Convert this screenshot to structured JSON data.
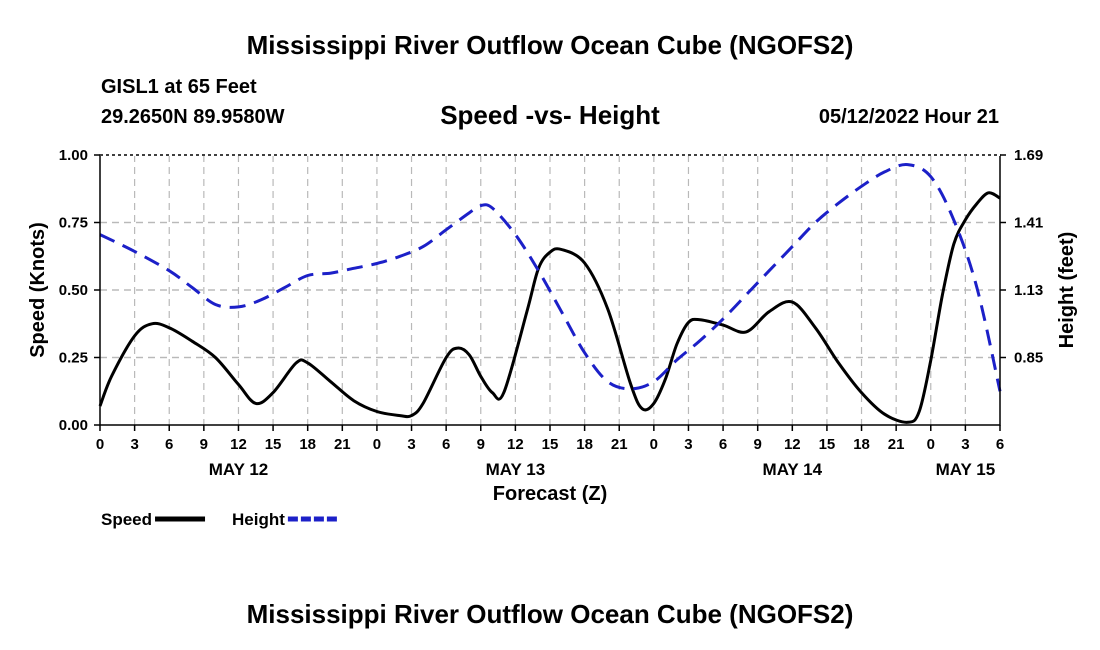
{
  "header": {
    "title": "Mississippi River Outflow Ocean Cube (NGOFS2)",
    "station": "GISL1 at 65 Feet",
    "coordinates": "29.2650N  89.9580W",
    "subtitle": "Speed -vs- Height",
    "datetime": "05/12/2022 Hour 21"
  },
  "footer": {
    "title": "Mississippi River Outflow Ocean Cube (NGOFS2)"
  },
  "chart_data": {
    "type": "line",
    "title": "Speed -vs- Height",
    "xlabel": "Forecast (Z)",
    "ylabel": "Speed (Knots)",
    "y2label": "Height (feet)",
    "x_range_hours": [
      0,
      78
    ],
    "xlim_hours_from_may12_00z": [
      0,
      78
    ],
    "x_ticks": [
      "0",
      "3",
      "6",
      "9",
      "12",
      "15",
      "18",
      "21",
      "0",
      "3",
      "6",
      "9",
      "12",
      "15",
      "18",
      "21",
      "0",
      "3",
      "6",
      "9",
      "12",
      "15",
      "18",
      "21",
      "0",
      "3",
      "6"
    ],
    "day_labels": [
      {
        "label": "MAY 12",
        "hour": 12
      },
      {
        "label": "MAY 13",
        "hour": 36
      },
      {
        "label": "MAY 14",
        "hour": 60
      },
      {
        "label": "MAY 15",
        "hour": 75
      }
    ],
    "ylim": [
      0,
      1.0
    ],
    "y_ticks": [
      "0.00",
      "0.25",
      "0.50",
      "0.75",
      "1.00"
    ],
    "y_tick_values": [
      0,
      0.25,
      0.5,
      0.75,
      1.0
    ],
    "y2lim": [
      0.57,
      1.69
    ],
    "y2_ticks": [
      "0.85",
      "1.13",
      "1.41",
      "1.69"
    ],
    "y2_tick_values": [
      0.85,
      1.13,
      1.41,
      1.69
    ],
    "grid": true,
    "legend_position": "bottom-left",
    "series": [
      {
        "name": "Speed",
        "axis": "left",
        "color": "#000000",
        "dash": "solid",
        "x": [
          0,
          1,
          3,
          4.5,
          6,
          8,
          10,
          12,
          13.5,
          15,
          17,
          18,
          20,
          22,
          24,
          26,
          27,
          28,
          30,
          31,
          32,
          33,
          34,
          35,
          37,
          38,
          39,
          40,
          42,
          44,
          46,
          47,
          48,
          49,
          50,
          51,
          52,
          54,
          56,
          58,
          60,
          62,
          64,
          66,
          68,
          70,
          71,
          72,
          73,
          74,
          75,
          76,
          77,
          78
        ],
        "values": [
          0.07,
          0.18,
          0.33,
          0.375,
          0.36,
          0.31,
          0.25,
          0.15,
          0.08,
          0.12,
          0.23,
          0.23,
          0.16,
          0.09,
          0.05,
          0.035,
          0.035,
          0.08,
          0.25,
          0.285,
          0.26,
          0.18,
          0.12,
          0.12,
          0.42,
          0.58,
          0.64,
          0.65,
          0.6,
          0.43,
          0.15,
          0.06,
          0.08,
          0.17,
          0.3,
          0.38,
          0.39,
          0.37,
          0.345,
          0.42,
          0.455,
          0.36,
          0.23,
          0.12,
          0.04,
          0.01,
          0.05,
          0.24,
          0.48,
          0.67,
          0.76,
          0.82,
          0.86,
          0.84
        ]
      },
      {
        "name": "Height",
        "axis": "right",
        "color": "#1c20c8",
        "dash": "dashed",
        "x": [
          0,
          3,
          6,
          8,
          10,
          12,
          14,
          16,
          18,
          20,
          22,
          24,
          26,
          28,
          30,
          32,
          33,
          34,
          36,
          38,
          40,
          42,
          44,
          46,
          48,
          50,
          52,
          54,
          56,
          58,
          60,
          62,
          64,
          66,
          68,
          70,
          72,
          74,
          76,
          78
        ],
        "values": [
          1.36,
          1.29,
          1.21,
          1.14,
          1.07,
          1.06,
          1.09,
          1.14,
          1.19,
          1.2,
          1.22,
          1.24,
          1.27,
          1.31,
          1.38,
          1.45,
          1.48,
          1.47,
          1.36,
          1.21,
          1.04,
          0.87,
          0.75,
          0.72,
          0.75,
          0.84,
          0.92,
          1.01,
          1.11,
          1.21,
          1.31,
          1.41,
          1.49,
          1.56,
          1.62,
          1.65,
          1.6,
          1.42,
          1.14,
          0.71
        ]
      }
    ]
  }
}
